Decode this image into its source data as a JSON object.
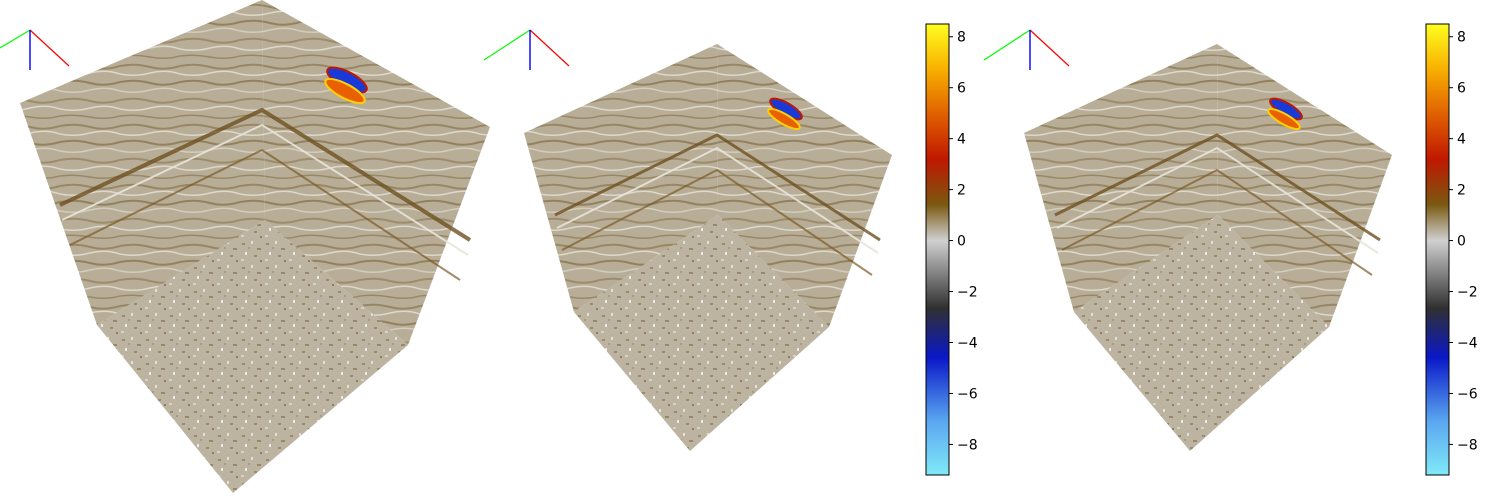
{
  "chart_data": [
    {
      "type": "heatmap",
      "subtype": "3d seismic cube",
      "colormap": [
        "#7fe8f8",
        "#3f80e8",
        "#0015c8",
        "#202020",
        "#c8c8c8",
        "#7a5a10",
        "#c01800",
        "#e06000",
        "#f8b800",
        "#ffff20"
      ],
      "anomaly": "blue-red amplitude event near top of right face",
      "axes_triad": {
        "x_color": "#ff0000",
        "y_color": "#00ff00",
        "z_color": "#0000ff"
      },
      "colorbar": null
    },
    {
      "type": "heatmap",
      "subtype": "3d seismic cube",
      "colormap": [
        "#7fe8f8",
        "#3f80e8",
        "#0015c8",
        "#202020",
        "#c8c8c8",
        "#7a5a10",
        "#c01800",
        "#e06000",
        "#f8b800",
        "#ffff20"
      ],
      "anomaly": "blue-red amplitude event near top of right face",
      "axes_triad": {
        "x_color": "#ff0000",
        "y_color": "#00ff00",
        "z_color": "#0000ff"
      },
      "colorbar": {
        "ticks": [
          "8",
          "6",
          "4",
          "2",
          "0",
          "−2",
          "−4",
          "−6",
          "−8"
        ],
        "range": [
          -9.2,
          8.5
        ]
      }
    },
    {
      "type": "heatmap",
      "subtype": "3d seismic cube",
      "colormap": [
        "#7fe8f8",
        "#3f80e8",
        "#0015c8",
        "#202020",
        "#c8c8c8",
        "#7a5a10",
        "#c01800",
        "#e06000",
        "#f8b800",
        "#ffff20"
      ],
      "anomaly": "blue-red amplitude event near top of right face",
      "axes_triad": {
        "x_color": "#ff0000",
        "y_color": "#00ff00",
        "z_color": "#0000ff"
      },
      "colorbar": {
        "ticks": [
          "8",
          "6",
          "4",
          "2",
          "0",
          "−2",
          "−4",
          "−6",
          "−8"
        ],
        "range": [
          -9.2,
          8.5
        ]
      }
    }
  ]
}
